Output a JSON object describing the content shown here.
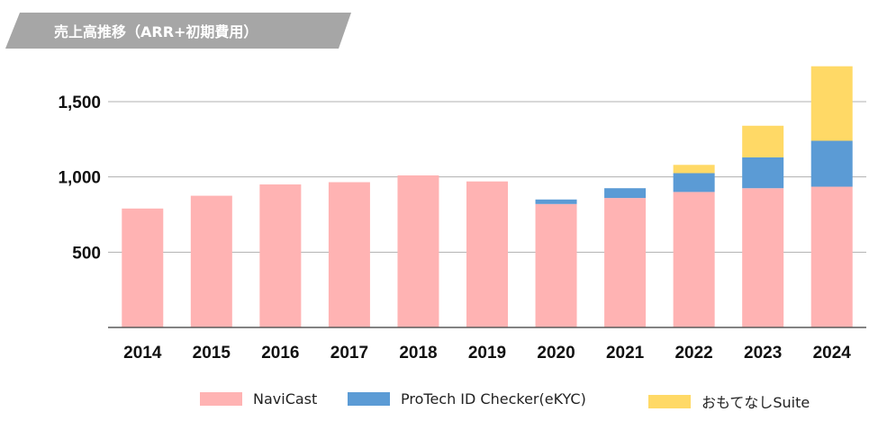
{
  "chart_data": {
    "type": "bar",
    "stacked": true,
    "title": "売上高推移（ARR+初期費用）",
    "categories": [
      "2014",
      "2015",
      "2016",
      "2017",
      "2018",
      "2019",
      "2020",
      "2021",
      "2022",
      "2023",
      "2024"
    ],
    "series": [
      {
        "name": "NaviCast",
        "color": "#ffb3b3",
        "values": [
          790,
          875,
          950,
          965,
          1010,
          970,
          820,
          860,
          900,
          925,
          935
        ]
      },
      {
        "name": "ProTech ID Checker(eKYC)",
        "color": "#5b9bd5",
        "values": [
          0,
          0,
          0,
          0,
          0,
          0,
          30,
          65,
          125,
          205,
          305
        ]
      },
      {
        "name": "おもてなしSuite",
        "color": "#ffd966",
        "values": [
          0,
          0,
          0,
          0,
          0,
          0,
          0,
          0,
          55,
          210,
          495
        ]
      }
    ],
    "yticks": [
      "500",
      "1,000",
      "1,500"
    ],
    "ylim": [
      0,
      1750
    ],
    "grid": true,
    "legend_position": "bottom"
  }
}
